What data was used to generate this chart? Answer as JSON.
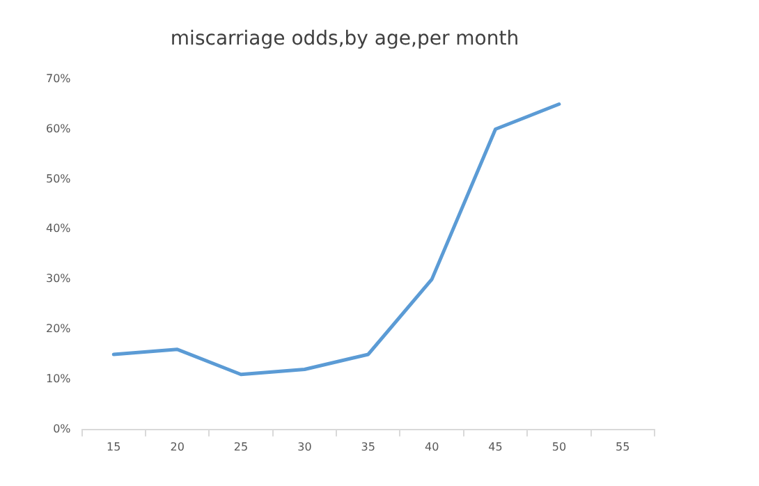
{
  "chart_data": {
    "type": "line",
    "title": "miscarriage odds,by age,per month",
    "categories": [
      "15",
      "20",
      "25",
      "30",
      "35",
      "40",
      "45",
      "50",
      "55"
    ],
    "series": [
      {
        "color": "#5b9bd5",
        "values": [
          15,
          16,
          11,
          12,
          15,
          30,
          60,
          65,
          null
        ]
      }
    ],
    "ylim": [
      0,
      70
    ],
    "yticks": [
      {
        "value": 0,
        "label": "0%"
      },
      {
        "value": 10,
        "label": "10%"
      },
      {
        "value": 20,
        "label": "20%"
      },
      {
        "value": 30,
        "label": "30%"
      },
      {
        "value": 40,
        "label": "40%"
      },
      {
        "value": 50,
        "label": "50%"
      },
      {
        "value": 60,
        "label": "60%"
      },
      {
        "value": 70,
        "label": "70%"
      }
    ],
    "grid": false,
    "legend": false,
    "marker": "none",
    "line_style": "solid"
  }
}
